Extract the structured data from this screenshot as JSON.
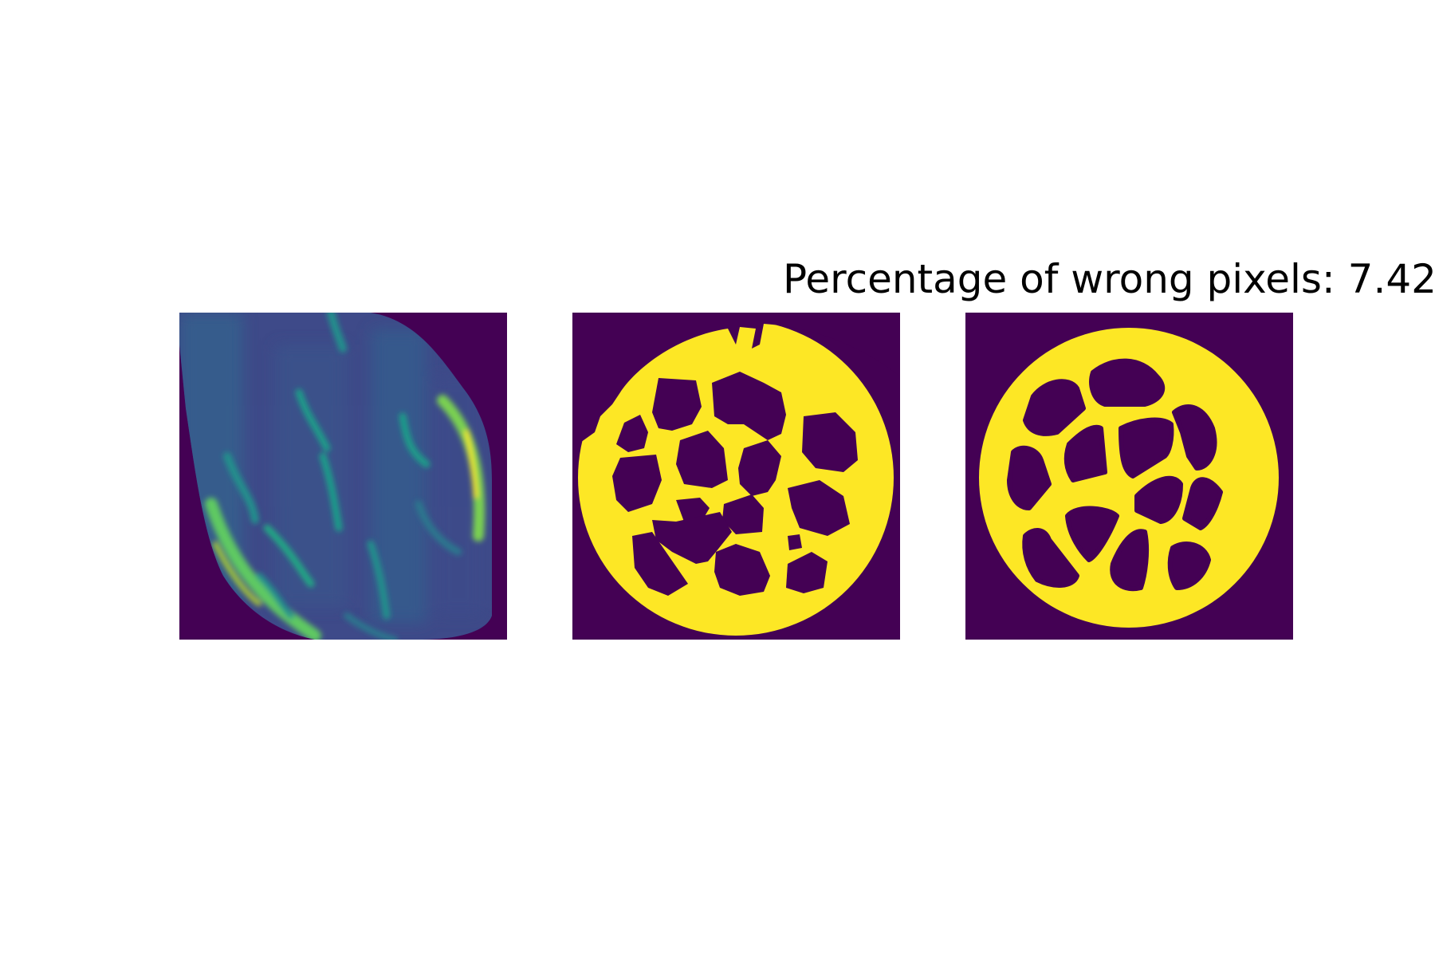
{
  "figure": {
    "title": "Percentage of wrong pixels: 7.42",
    "colors": {
      "background": "#440154",
      "foreground": "#fde725",
      "mid_teal": "#21918c",
      "mid_blue": "#3b528b",
      "light_green": "#5ec962"
    },
    "panels": [
      {
        "id": "input",
        "description_name": "sinogram-reconstruction",
        "colormap": "viridis"
      },
      {
        "id": "prediction",
        "description_name": "predicted-segmentation",
        "colormap": "viridis"
      },
      {
        "id": "ground_truth",
        "description_name": "ground-truth-segmentation",
        "colormap": "viridis"
      }
    ]
  }
}
